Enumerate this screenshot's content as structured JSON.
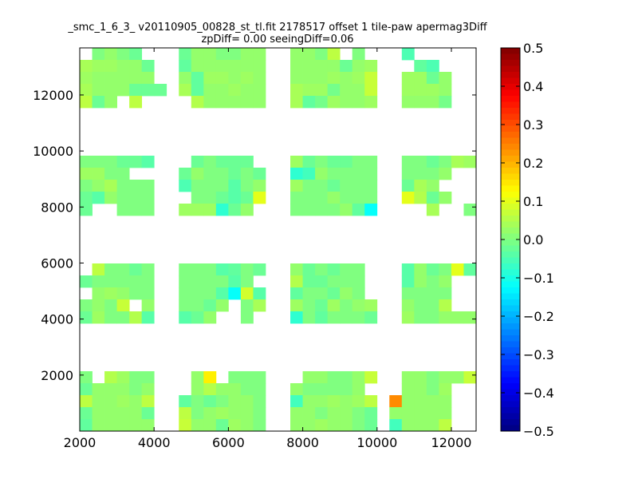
{
  "chart_data": {
    "type": "heatmap",
    "title": "_smc_1_6_3_ v20110905_00828_st_tl.fit 2178517 offset 1 tile-paw apermag3Diff",
    "subtitle": "zpDiff= 0.00 seeingDiff=0.06",
    "xlabel": "",
    "ylabel": "",
    "xlim": [
      2000,
      12665
    ],
    "ylim": [
      0,
      13680
    ],
    "x_ticks": [
      "2000",
      "4000",
      "6000",
      "8000",
      "10000",
      "12000"
    ],
    "y_ticks": [
      "2000",
      "4000",
      "6000",
      "8000",
      "10000",
      "12000"
    ],
    "colormap": "jet",
    "clim": [
      -0.5,
      0.5
    ],
    "colorbar_ticks": [
      "0.5",
      "0.4",
      "0.3",
      "0.2",
      "0.1",
      "0.0",
      "−0.1",
      "−0.2",
      "−0.3",
      "−0.4",
      "−0.5"
    ],
    "grid": false,
    "z_rows_top_to_bottom": [
      [
        null,
        0.0,
        0.02,
        0.0,
        -0.02,
        null,
        null,
        null,
        -0.02,
        0.02,
        0.02,
        0.0,
        0.0,
        0.02,
        0.02,
        null,
        null,
        0.02,
        0.02,
        0.0,
        0.06,
        null,
        0.0,
        null,
        null,
        null,
        -0.05,
        null,
        null,
        null,
        null,
        null
      ],
      [
        0.04,
        0.03,
        0.03,
        0.02,
        0.02,
        -0.02,
        null,
        null,
        -0.03,
        0.02,
        0.02,
        0.02,
        0.02,
        0.02,
        0.02,
        null,
        null,
        0.02,
        0.02,
        0.02,
        0.02,
        -0.02,
        0.02,
        0.03,
        null,
        null,
        null,
        -0.03,
        -0.05,
        null,
        null,
        null
      ],
      [
        0.03,
        0.02,
        0.02,
        0.02,
        0.02,
        0.02,
        null,
        null,
        0.02,
        -0.03,
        0.03,
        0.03,
        0.02,
        0.03,
        0.02,
        null,
        null,
        0.02,
        0.02,
        0.02,
        0.03,
        0.02,
        0.03,
        0.07,
        null,
        null,
        0.03,
        0.03,
        -0.02,
        0.02,
        null,
        null
      ],
      [
        0.04,
        0.02,
        0.02,
        0.02,
        -0.02,
        -0.02,
        -0.02,
        null,
        0.04,
        -0.03,
        0.02,
        0.02,
        0.03,
        0.02,
        0.02,
        null,
        null,
        0.04,
        0.03,
        0.03,
        -0.01,
        0.02,
        0.02,
        0.07,
        null,
        null,
        0.03,
        0.03,
        0.03,
        0.02,
        null,
        null
      ],
      [
        0.06,
        -0.02,
        0.02,
        null,
        0.06,
        null,
        null,
        null,
        null,
        0.05,
        0.02,
        0.02,
        0.02,
        0.02,
        0.02,
        null,
        null,
        0.04,
        -0.03,
        -0.01,
        0.03,
        0.02,
        0.02,
        0.03,
        null,
        null,
        0.02,
        0.02,
        0.02,
        -0.01,
        null,
        null
      ],
      [
        null,
        null,
        null,
        null,
        null,
        null,
        null,
        null,
        null,
        null,
        null,
        null,
        null,
        null,
        null,
        null,
        null,
        null,
        null,
        null,
        null,
        null,
        null,
        null,
        null,
        null,
        null,
        null,
        null,
        null,
        null,
        null
      ],
      [
        null,
        null,
        null,
        null,
        null,
        null,
        null,
        null,
        null,
        null,
        null,
        null,
        null,
        null,
        null,
        null,
        null,
        null,
        null,
        null,
        null,
        null,
        null,
        null,
        null,
        null,
        null,
        null,
        null,
        null,
        null,
        null
      ],
      [
        null,
        null,
        null,
        null,
        null,
        null,
        null,
        null,
        null,
        null,
        null,
        null,
        null,
        null,
        null,
        null,
        null,
        null,
        null,
        null,
        null,
        null,
        null,
        null,
        null,
        null,
        null,
        null,
        null,
        null,
        null,
        null
      ],
      [
        null,
        null,
        null,
        null,
        null,
        null,
        null,
        null,
        null,
        null,
        null,
        null,
        null,
        null,
        null,
        null,
        null,
        null,
        null,
        null,
        null,
        null,
        null,
        null,
        null,
        null,
        null,
        null,
        null,
        null,
        null,
        null
      ],
      [
        0.0,
        0.0,
        0.0,
        -0.02,
        -0.02,
        -0.04,
        null,
        null,
        null,
        -0.02,
        0.0,
        -0.02,
        -0.02,
        -0.02,
        null,
        null,
        null,
        0.03,
        -0.02,
        0.0,
        -0.02,
        -0.02,
        0.0,
        0.0,
        null,
        null,
        0.0,
        0.0,
        -0.02,
        0.0,
        0.04,
        0.03
      ],
      [
        0.03,
        0.03,
        0.0,
        0.0,
        null,
        null,
        null,
        null,
        -0.02,
        0.02,
        0.0,
        0.0,
        -0.02,
        0.0,
        -0.02,
        null,
        null,
        -0.08,
        -0.06,
        0.02,
        0.0,
        0.0,
        0.0,
        0.0,
        null,
        null,
        0.0,
        0.0,
        0.0,
        0.02,
        null,
        null
      ],
      [
        0.0,
        0.02,
        0.04,
        0.0,
        0.0,
        0.0,
        null,
        null,
        -0.05,
        0.0,
        0.0,
        0.0,
        -0.04,
        0.0,
        0.02,
        null,
        null,
        0.03,
        0.0,
        0.0,
        -0.02,
        0.0,
        0.0,
        0.0,
        null,
        null,
        -0.02,
        0.04,
        0.02,
        null,
        null,
        null
      ],
      [
        -0.02,
        -0.04,
        0.02,
        0.0,
        0.0,
        0.0,
        null,
        null,
        null,
        0.0,
        0.0,
        -0.02,
        -0.04,
        -0.02,
        0.1,
        null,
        null,
        0.0,
        0.0,
        0.0,
        0.02,
        0.0,
        0.0,
        0.0,
        null,
        null,
        0.1,
        0.05,
        -0.02,
        0.02,
        null,
        null
      ],
      [
        -0.02,
        null,
        null,
        0.0,
        0.0,
        0.0,
        null,
        null,
        0.03,
        0.03,
        0.03,
        -0.08,
        -0.02,
        0.02,
        null,
        null,
        null,
        0.0,
        0.0,
        0.0,
        0.0,
        0.02,
        -0.03,
        -0.12,
        null,
        null,
        null,
        null,
        0.04,
        null,
        null,
        0.0
      ],
      [
        null,
        null,
        null,
        null,
        null,
        null,
        null,
        null,
        null,
        null,
        null,
        null,
        null,
        null,
        null,
        null,
        null,
        null,
        null,
        null,
        null,
        null,
        null,
        null,
        null,
        null,
        null,
        null,
        null,
        null,
        null,
        null
      ],
      [
        null,
        null,
        null,
        null,
        null,
        null,
        null,
        null,
        null,
        null,
        null,
        null,
        null,
        null,
        null,
        null,
        null,
        null,
        null,
        null,
        null,
        null,
        null,
        null,
        null,
        null,
        null,
        null,
        null,
        null,
        null,
        null
      ],
      [
        null,
        null,
        null,
        null,
        null,
        null,
        null,
        null,
        null,
        null,
        null,
        null,
        null,
        null,
        null,
        null,
        null,
        null,
        null,
        null,
        null,
        null,
        null,
        null,
        null,
        null,
        null,
        null,
        null,
        null,
        null,
        null
      ],
      [
        null,
        null,
        null,
        null,
        null,
        null,
        null,
        null,
        null,
        null,
        null,
        null,
        null,
        null,
        null,
        null,
        null,
        null,
        null,
        null,
        null,
        null,
        null,
        null,
        null,
        null,
        null,
        null,
        null,
        null,
        null,
        null
      ],
      [
        null,
        0.06,
        0.0,
        0.0,
        -0.02,
        0.0,
        null,
        null,
        0.0,
        0.0,
        0.0,
        -0.04,
        -0.03,
        0.0,
        -0.02,
        null,
        null,
        0.02,
        -0.02,
        0.0,
        -0.02,
        0.0,
        0.0,
        null,
        null,
        null,
        -0.04,
        0.02,
        -0.02,
        0.0,
        0.1,
        -0.03
      ],
      [
        -0.02,
        0.0,
        0.0,
        0.0,
        0.0,
        0.0,
        null,
        null,
        0.0,
        0.0,
        0.0,
        0.0,
        -0.04,
        0.0,
        null,
        null,
        null,
        0.05,
        -0.02,
        -0.02,
        0.0,
        0.0,
        0.0,
        null,
        null,
        null,
        -0.04,
        0.02,
        0.0,
        0.02,
        null,
        null
      ],
      [
        null,
        0.02,
        0.03,
        0.02,
        0.0,
        0.0,
        null,
        null,
        0.0,
        0.0,
        0.0,
        -0.04,
        -0.12,
        0.08,
        -0.04,
        null,
        null,
        -0.03,
        0.0,
        0.0,
        -0.02,
        0.02,
        0.0,
        null,
        null,
        null,
        0.0,
        0.0,
        0.0,
        0.0,
        null,
        null
      ],
      [
        0.0,
        0.02,
        0.0,
        0.07,
        null,
        0.02,
        null,
        null,
        0.0,
        0.0,
        -0.02,
        0.02,
        null,
        0.0,
        0.04,
        null,
        null,
        0.03,
        0.0,
        -0.02,
        0.03,
        0.0,
        0.02,
        0.03,
        null,
        null,
        0.02,
        0.0,
        0.0,
        0.05,
        null,
        null
      ],
      [
        -0.02,
        0.03,
        0.0,
        0.0,
        0.05,
        -0.04,
        null,
        null,
        -0.04,
        -0.02,
        0.02,
        null,
        null,
        0.0,
        null,
        null,
        null,
        -0.08,
        0.0,
        -0.03,
        0.0,
        0.0,
        0.0,
        -0.02,
        null,
        null,
        0.03,
        0.0,
        0.0,
        0.02,
        0.02,
        0.02
      ],
      [
        null,
        null,
        null,
        null,
        null,
        null,
        null,
        null,
        null,
        null,
        null,
        null,
        null,
        null,
        null,
        null,
        null,
        null,
        null,
        null,
        null,
        null,
        null,
        null,
        null,
        null,
        null,
        null,
        null,
        null,
        null,
        null
      ],
      [
        null,
        null,
        null,
        null,
        null,
        null,
        null,
        null,
        null,
        null,
        null,
        null,
        null,
        null,
        null,
        null,
        null,
        null,
        null,
        null,
        null,
        null,
        null,
        null,
        null,
        null,
        null,
        null,
        null,
        null,
        null,
        null
      ],
      [
        null,
        null,
        null,
        null,
        null,
        null,
        null,
        null,
        null,
        null,
        null,
        null,
        null,
        null,
        null,
        null,
        null,
        null,
        null,
        null,
        null,
        null,
        null,
        null,
        null,
        null,
        null,
        null,
        null,
        null,
        null,
        null
      ],
      [
        null,
        null,
        null,
        null,
        null,
        null,
        null,
        null,
        null,
        null,
        null,
        null,
        null,
        null,
        null,
        null,
        null,
        null,
        null,
        null,
        null,
        null,
        null,
        null,
        null,
        null,
        null,
        null,
        null,
        null,
        null,
        null
      ],
      [
        0.0,
        null,
        0.05,
        0.03,
        0.0,
        0.0,
        null,
        null,
        null,
        0.02,
        0.14,
        null,
        0.0,
        0.0,
        0.0,
        null,
        null,
        null,
        0.02,
        0.02,
        0.0,
        0.0,
        0.02,
        0.07,
        null,
        null,
        0.02,
        0.02,
        0.0,
        0.02,
        0.02,
        0.07
      ],
      [
        -0.02,
        0.02,
        0.02,
        0.02,
        0.0,
        0.02,
        null,
        null,
        null,
        0.02,
        0.05,
        0.02,
        0.02,
        0.0,
        0.0,
        null,
        null,
        0.02,
        0.0,
        0.0,
        0.0,
        0.0,
        0.02,
        null,
        null,
        null,
        0.02,
        0.02,
        0.0,
        0.03,
        null,
        null
      ],
      [
        0.06,
        0.02,
        0.02,
        0.03,
        0.02,
        0.06,
        null,
        null,
        -0.03,
        0.0,
        -0.02,
        0.0,
        0.02,
        0.02,
        0.0,
        null,
        null,
        -0.06,
        0.02,
        0.02,
        0.03,
        0.02,
        0.03,
        0.06,
        null,
        0.24,
        0.02,
        0.02,
        0.02,
        0.02,
        null,
        null
      ],
      [
        -0.02,
        0.02,
        0.02,
        0.02,
        0.02,
        -0.02,
        null,
        null,
        0.06,
        0.0,
        0.02,
        0.03,
        0.02,
        0.02,
        0.0,
        null,
        null,
        0.02,
        0.02,
        0.0,
        0.02,
        0.02,
        0.0,
        -0.02,
        null,
        0.02,
        0.02,
        0.02,
        0.02,
        0.02,
        null,
        null
      ],
      [
        -0.03,
        0.02,
        0.02,
        0.02,
        0.02,
        0.02,
        null,
        null,
        0.07,
        0.02,
        0.02,
        -0.02,
        0.03,
        0.02,
        0.0,
        null,
        null,
        0.02,
        0.02,
        0.03,
        0.02,
        0.02,
        0.0,
        -0.02,
        null,
        -0.06,
        0.02,
        0.02,
        0.02,
        0.06,
        null,
        null
      ]
    ]
  }
}
